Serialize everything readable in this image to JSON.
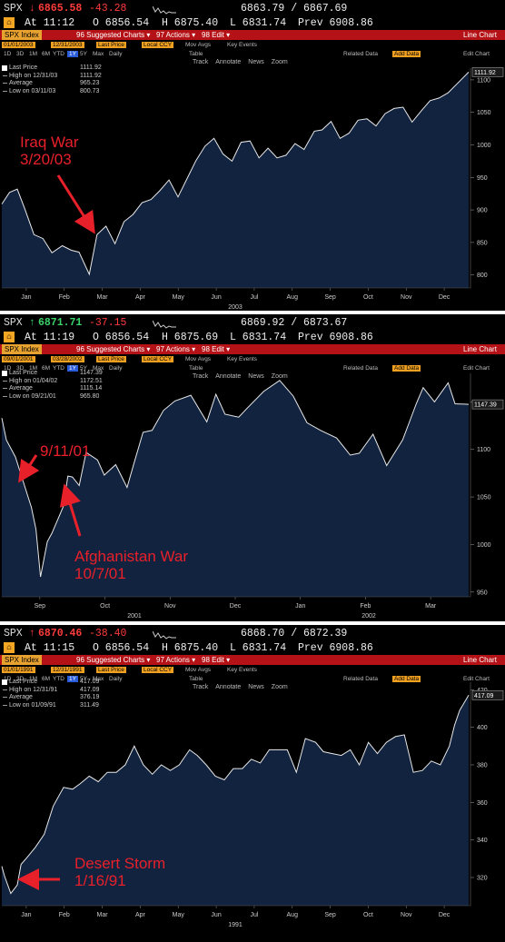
{
  "panels": [
    {
      "id": "p2003",
      "quote": {
        "ticker": "SPX",
        "arrow": "↓",
        "last": "6865.58",
        "change": "-43.28",
        "bidask": "6863.79 / 6867.69",
        "time": "At 11:12",
        "open": "O 6856.54",
        "high": "H 6875.40",
        "low": "L 6831.74",
        "prev": "Prev 6908.86",
        "last_color": "red"
      },
      "menu": {
        "index": "SPX Index",
        "suggested": "96 Suggested Charts ▾",
        "actions": "97 Actions ▾",
        "edit": "98 Edit ▾",
        "line_chart": "Line Chart"
      },
      "toolbar1": {
        "start": "01/01/2003",
        "end": "12/31/2003",
        "field": "Last Price",
        "ccy": "Local CCY",
        "mov": "Mov Avgs",
        "key": "Key Events"
      },
      "toolbar2": {
        "periods": [
          "1D",
          "3D",
          "1M",
          "6M",
          "YTD",
          "1Y",
          "5Y",
          "Max"
        ],
        "freq": "Daily",
        "table": "Table",
        "related": "Related Data",
        "add": "Add Data",
        "edit_chart": "Edit Chart"
      },
      "tools": [
        "Track",
        "Annotate",
        "News",
        "Zoom"
      ],
      "legend": [
        [
          "Last Price",
          "1111.92"
        ],
        [
          "High on 12/31/03",
          "1111.92"
        ],
        [
          "Average",
          "965.23"
        ],
        [
          "Low on 03/11/03",
          "800.73"
        ]
      ],
      "year_label": "2003",
      "annotation": {
        "text": "Iraq War\n3/20/03"
      }
    },
    {
      "id": "p2001",
      "quote": {
        "ticker": "SPX",
        "arrow": "↑",
        "last": "6871.71",
        "change": "-37.15",
        "bidask": "6869.92 / 6873.67",
        "time": "At 11:19",
        "open": "O 6856.54",
        "high": "H 6875.69",
        "low": "L 6831.74",
        "prev": "Prev 6908.86",
        "last_color": "green"
      },
      "menu": {
        "index": "SPX Index",
        "suggested": "96 Suggested Charts ▾",
        "actions": "97 Actions ▾",
        "edit": "98 Edit ▾",
        "line_chart": "Line Chart"
      },
      "toolbar1": {
        "start": "09/01/2001",
        "end": "03/28/2002",
        "field": "Last Price",
        "ccy": "Local CCY",
        "mov": "Mov Avgs",
        "key": "Key Events"
      },
      "toolbar2": {
        "periods": [
          "1D",
          "3D",
          "1M",
          "6M",
          "YTD",
          "1Y",
          "5Y",
          "Max"
        ],
        "freq": "Daily",
        "table": "Table",
        "related": "Related Data",
        "add": "Add Data",
        "edit_chart": "Edit Chart"
      },
      "tools": [
        "Track",
        "Annotate",
        "News",
        "Zoom"
      ],
      "legend": [
        [
          "Last Price",
          "1147.39"
        ],
        [
          "High on 01/04/02",
          "1172.51"
        ],
        [
          "Average",
          "1115.14"
        ],
        [
          "Low on 09/21/01",
          "965.80"
        ]
      ],
      "year_label_left": "2001",
      "year_label_right": "2002",
      "annotation": {
        "text": "9/11/01"
      },
      "annotation2": {
        "text": "Afghanistan War\n10/7/01"
      }
    },
    {
      "id": "p1991",
      "quote": {
        "ticker": "SPX",
        "arrow": "↑",
        "last": "6870.46",
        "change": "-38.40",
        "bidask": "6868.70 / 6872.39",
        "time": "At 11:15",
        "open": "O 6856.54",
        "high": "H 6875.40",
        "low": "L 6831.74",
        "prev": "Prev 6908.86",
        "last_color": "red"
      },
      "menu": {
        "index": "SPX Index",
        "suggested": "96 Suggested Charts ▾",
        "actions": "97 Actions ▾",
        "edit": "98 Edit ▾",
        "line_chart": "Line Chart"
      },
      "toolbar1": {
        "start": "01/01/1991",
        "end": "12/31/1991",
        "field": "Last Price",
        "ccy": "Local CCY",
        "mov": "Mov Avgs",
        "key": "Key Events"
      },
      "toolbar2": {
        "periods": [
          "1D",
          "3D",
          "1M",
          "6M",
          "YTD",
          "1Y",
          "5Y",
          "Max"
        ],
        "freq": "Daily",
        "table": "Table",
        "related": "Related Data",
        "add": "Add Data",
        "edit_chart": "Edit Chart"
      },
      "tools": [
        "Track",
        "Annotate",
        "News",
        "Zoom"
      ],
      "legend": [
        [
          "Last Price",
          "417.09"
        ],
        [
          "High on 12/31/91",
          "417.09"
        ],
        [
          "Average",
          "376.19"
        ],
        [
          "Low on 01/09/91",
          "311.49"
        ]
      ],
      "year_label": "1991",
      "annotation": {
        "text": "Desert Storm\n1/16/91"
      }
    }
  ],
  "chart_data": [
    {
      "type": "area",
      "title": "SPX Index 2003",
      "xlabel": "2003",
      "x_ticks": [
        "Jan",
        "Feb",
        "Mar",
        "Apr",
        "May",
        "Jun",
        "Jul",
        "Aug",
        "Sep",
        "Oct",
        "Nov",
        "Dec"
      ],
      "y_ticks": [
        800,
        850,
        900,
        950,
        1000,
        1050,
        1100
      ],
      "ylim": [
        780,
        1118
      ],
      "last_label": "1111.92",
      "x": [
        "2003-01-02",
        "2003-01-08",
        "2003-01-14",
        "2003-01-20",
        "2003-01-27",
        "2003-02-03",
        "2003-02-10",
        "2003-02-18",
        "2003-02-25",
        "2003-03-03",
        "2003-03-11",
        "2003-03-17",
        "2003-03-24",
        "2003-03-31",
        "2003-04-07",
        "2003-04-14",
        "2003-04-21",
        "2003-04-28",
        "2003-05-05",
        "2003-05-12",
        "2003-05-19",
        "2003-05-27",
        "2003-06-02",
        "2003-06-09",
        "2003-06-16",
        "2003-06-23",
        "2003-06-30",
        "2003-07-07",
        "2003-07-14",
        "2003-07-21",
        "2003-07-28",
        "2003-08-04",
        "2003-08-11",
        "2003-08-18",
        "2003-08-25",
        "2003-09-02",
        "2003-09-08",
        "2003-09-15",
        "2003-09-22",
        "2003-09-29",
        "2003-10-06",
        "2003-10-13",
        "2003-10-20",
        "2003-10-27",
        "2003-11-03",
        "2003-11-10",
        "2003-11-17",
        "2003-11-24",
        "2003-12-01",
        "2003-12-08",
        "2003-12-15",
        "2003-12-22",
        "2003-12-31"
      ],
      "values": [
        909,
        927,
        932,
        901,
        862,
        856,
        834,
        845,
        838,
        835,
        801,
        862,
        875,
        848,
        882,
        893,
        911,
        916,
        930,
        946,
        920,
        952,
        976,
        998,
        1010,
        986,
        975,
        1004,
        1006,
        980,
        995,
        980,
        984,
        1002,
        993,
        1021,
        1023,
        1036,
        1010,
        1018,
        1038,
        1040,
        1029,
        1048,
        1056,
        1058,
        1035,
        1052,
        1068,
        1072,
        1080,
        1094,
        1111.92
      ]
    },
    {
      "type": "area",
      "title": "SPX Index 2001-2002",
      "xlabel": "2001 / 2002",
      "x_ticks": [
        "Sep",
        "Oct",
        "Nov",
        "Dec",
        "Jan",
        "Feb",
        "Mar"
      ],
      "y_ticks": [
        950,
        1000,
        1050,
        1100,
        1150
      ],
      "ylim": [
        945,
        1180
      ],
      "last_label": "1147.39",
      "x": [
        "2001-09-04",
        "2001-09-06",
        "2001-09-10",
        "2001-09-17",
        "2001-09-19",
        "2001-09-21",
        "2001-09-24",
        "2001-09-26",
        "2001-10-01",
        "2001-10-03",
        "2001-10-05",
        "2001-10-08",
        "2001-10-11",
        "2001-10-16",
        "2001-10-19",
        "2001-10-24",
        "2001-10-29",
        "2001-11-01",
        "2001-11-05",
        "2001-11-09",
        "2001-11-14",
        "2001-11-19",
        "2001-11-26",
        "2001-12-03",
        "2001-12-07",
        "2001-12-11",
        "2001-12-17",
        "2001-12-21",
        "2001-12-28",
        "2002-01-04",
        "2002-01-10",
        "2002-01-16",
        "2002-01-22",
        "2002-01-29",
        "2002-02-04",
        "2002-02-08",
        "2002-02-14",
        "2002-02-20",
        "2002-02-27",
        "2002-03-05",
        "2002-03-08",
        "2002-03-13",
        "2002-03-19",
        "2002-03-22",
        "2002-03-28"
      ],
      "values": [
        1133,
        1110,
        1092,
        1039,
        1016,
        966,
        1003,
        1012,
        1040,
        1072,
        1071,
        1062,
        1097,
        1089,
        1073,
        1084,
        1060,
        1085,
        1118,
        1120,
        1141,
        1151,
        1157,
        1129,
        1158,
        1137,
        1134,
        1144,
        1161,
        1172.51,
        1156,
        1128,
        1120,
        1112,
        1094,
        1096,
        1116,
        1083,
        1110,
        1148,
        1165,
        1150,
        1170,
        1148,
        1147.39
      ]
    },
    {
      "type": "area",
      "title": "SPX Index 1991",
      "xlabel": "1991",
      "x_ticks": [
        "Jan",
        "Feb",
        "Mar",
        "Apr",
        "May",
        "Jun",
        "Jul",
        "Aug",
        "Sep",
        "Oct",
        "Nov",
        "Dec"
      ],
      "y_ticks": [
        320,
        340,
        360,
        380,
        400,
        420
      ],
      "ylim": [
        305,
        424
      ],
      "last_label": "417.09",
      "x": [
        "1991-01-02",
        "1991-01-04",
        "1991-01-09",
        "1991-01-14",
        "1991-01-17",
        "1991-01-22",
        "1991-01-28",
        "1991-02-04",
        "1991-02-11",
        "1991-02-19",
        "1991-02-26",
        "1991-03-04",
        "1991-03-11",
        "1991-03-18",
        "1991-03-25",
        "1991-04-01",
        "1991-04-08",
        "1991-04-15",
        "1991-04-22",
        "1991-04-29",
        "1991-05-06",
        "1991-05-13",
        "1991-05-20",
        "1991-05-28",
        "1991-06-03",
        "1991-06-10",
        "1991-06-17",
        "1991-06-24",
        "1991-07-01",
        "1991-07-08",
        "1991-07-15",
        "1991-07-22",
        "1991-07-29",
        "1991-08-05",
        "1991-08-12",
        "1991-08-19",
        "1991-08-26",
        "1991-09-03",
        "1991-09-09",
        "1991-09-16",
        "1991-09-23",
        "1991-09-30",
        "1991-10-07",
        "1991-10-14",
        "1991-10-21",
        "1991-10-28",
        "1991-11-04",
        "1991-11-11",
        "1991-11-18",
        "1991-11-25",
        "1991-12-02",
        "1991-12-09",
        "1991-12-16",
        "1991-12-20",
        "1991-12-24",
        "1991-12-31"
      ],
      "values": [
        326,
        321,
        311.49,
        316,
        327,
        331,
        336,
        343,
        358,
        368,
        367,
        370,
        374,
        371,
        376,
        376,
        380,
        390,
        380,
        375,
        380,
        377,
        380,
        388,
        385,
        380,
        374,
        372,
        378,
        378,
        383,
        381,
        388,
        388,
        388,
        376,
        394,
        392,
        387,
        386,
        385,
        388,
        380,
        392,
        386,
        392,
        395,
        396,
        376,
        377,
        382,
        380,
        390,
        401,
        409,
        417.09
      ]
    }
  ]
}
